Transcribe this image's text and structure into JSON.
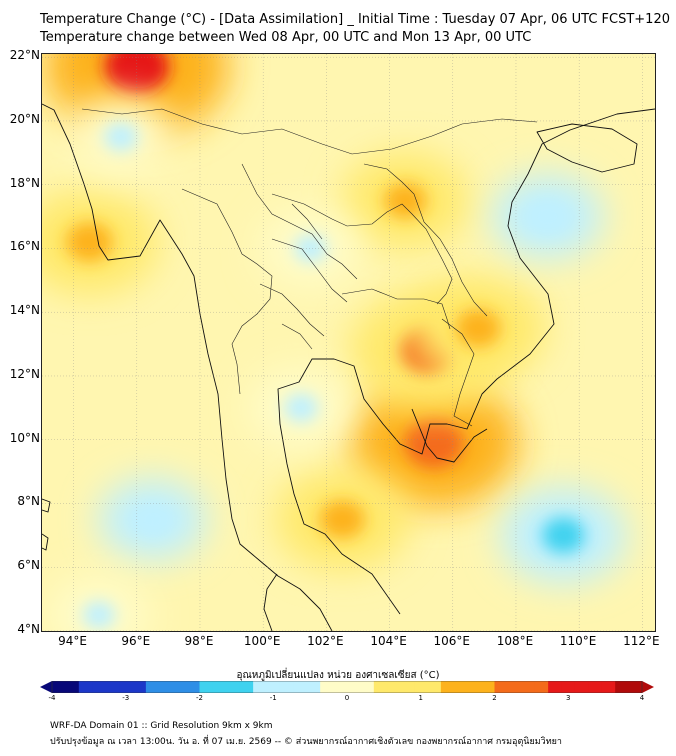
{
  "title": {
    "line1": "Temperature Change (°C) - [Data Assimilation] _ Initial Time : Tuesday 07 Apr, 06 UTC FCST+120",
    "line2": "Temperature change between Wed 08 Apr, 00 UTC and Mon 13 Apr, 00 UTC"
  },
  "map": {
    "lat_labels": [
      "22°N",
      "20°N",
      "18°N",
      "16°N",
      "14°N",
      "12°N",
      "10°N",
      "8°N",
      "6°N",
      "4°N"
    ],
    "lon_labels": [
      "94°E",
      "96°E",
      "98°E",
      "100°E",
      "102°E",
      "104°E",
      "106°E",
      "108°E",
      "110°E",
      "112°E"
    ],
    "lat_range": [
      4,
      22.1
    ],
    "lon_range": [
      93,
      112.4
    ],
    "background_color": "#fff6b0",
    "hotspots": [
      {
        "name": "northern-myanmar-hot",
        "lon": 96.0,
        "lat": 21.7,
        "value": 2.9
      },
      {
        "name": "southern-vietnam-hot",
        "lon": 105.4,
        "lat": 9.9,
        "value": 2.5
      },
      {
        "name": "cambodia-warm",
        "lon": 105.2,
        "lat": 12.8,
        "value": 2.1
      },
      {
        "name": "myanmar-west-warm",
        "lon": 94.5,
        "lat": 16.2,
        "value": 1.6
      },
      {
        "name": "laos-warm",
        "lon": 104.5,
        "lat": 17.5,
        "value": 1.3
      },
      {
        "name": "central-vietnam-warm",
        "lon": 106.8,
        "lat": 13.5,
        "value": 1.5
      },
      {
        "name": "gulf-thailand-warm",
        "lon": 102.5,
        "lat": 7.5,
        "value": 1.5
      },
      {
        "name": "south-china-sea-cool",
        "lon": 109.5,
        "lat": 7.0,
        "value": -1.3
      },
      {
        "name": "gulf-tonkin-cool",
        "lon": 109.0,
        "lat": 17.0,
        "value": -0.9
      },
      {
        "name": "andaman-cool",
        "lon": 96.5,
        "lat": 7.5,
        "value": -0.8
      },
      {
        "name": "northern-myanmar-cool",
        "lon": 95.5,
        "lat": 19.5,
        "value": -0.7
      },
      {
        "name": "central-thailand-cool",
        "lon": 101.2,
        "lat": 11.0,
        "value": -0.7
      },
      {
        "name": "isan-cool",
        "lon": 101.5,
        "lat": 16.0,
        "value": -0.6
      },
      {
        "name": "south-andaman-cool",
        "lon": 94.8,
        "lat": 4.5,
        "value": -0.6
      }
    ]
  },
  "colorbar": {
    "title": "อุณหภูมิเปลี่ยนแปลง หน่วย องศาเซลเซียส (°C)",
    "ticks": [
      "-4",
      "-3",
      "-2",
      "-1",
      "0",
      "1",
      "2",
      "3",
      "4"
    ],
    "min": -4,
    "max": 4,
    "colors": [
      "#080878",
      "#1c37c8",
      "#2e8ee6",
      "#3fd2ef",
      "#bff0ff",
      "#fffcc8",
      "#ffe96b",
      "#fdb21c",
      "#f46b1a",
      "#e61919",
      "#b00a0a"
    ]
  },
  "footer": {
    "line1": "WRF-DA Domain 01 :: Grid Resolution 9km x 9km",
    "line2": "ปรับปรุงข้อมูล ณ เวลา 13:00น. วัน อ. ที่ 07 เม.ย. 2569 -- © ส่วนพยากรณ์อากาศเชิงตัวเลข กองพยากรณ์อากาศ กรมอุตุนิยมวิทยา"
  }
}
